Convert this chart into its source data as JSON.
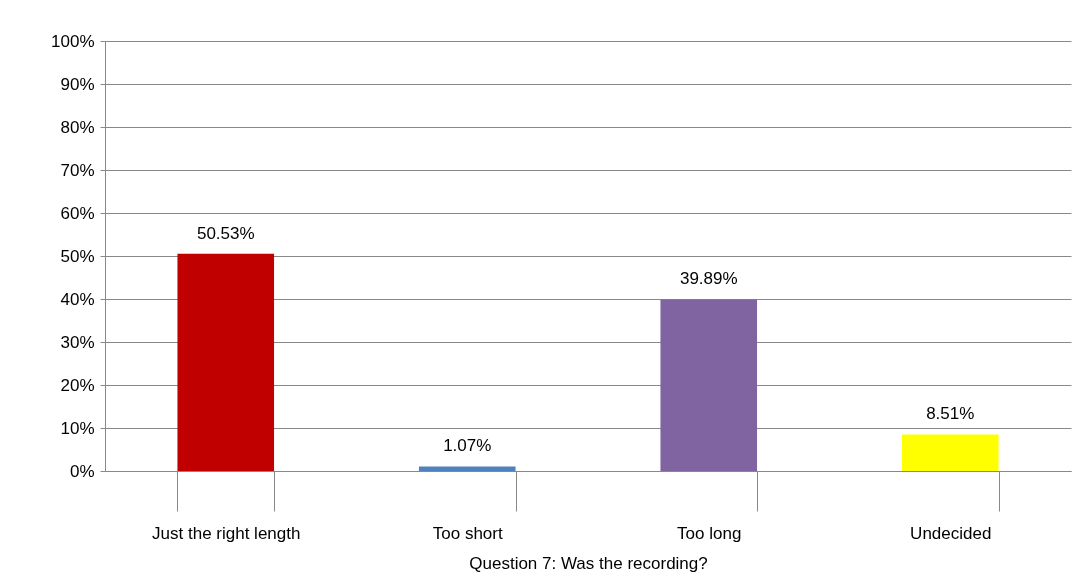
{
  "chart_data": {
    "type": "bar",
    "xlabel": "Question 7: Was the recording?",
    "categories": [
      "Just the right length",
      "Too short",
      "Too long",
      "Undecided"
    ],
    "values": [
      50.53,
      1.07,
      39.89,
      8.51
    ],
    "value_labels": [
      "50.53%",
      "1.07%",
      "39.89%",
      "8.51%"
    ],
    "colors": [
      "#c00000",
      "#4f81bd",
      "#8064a2",
      "#ffff00"
    ],
    "ylim": [
      0,
      100
    ],
    "yticks": [
      {
        "value": 0,
        "label": "0%"
      },
      {
        "value": 10,
        "label": "10%"
      },
      {
        "value": 20,
        "label": "20%"
      },
      {
        "value": 30,
        "label": "30%"
      },
      {
        "value": 40,
        "label": "40%"
      },
      {
        "value": 50,
        "label": "50%"
      },
      {
        "value": 60,
        "label": "60%"
      },
      {
        "value": 70,
        "label": "70%"
      },
      {
        "value": 80,
        "label": "80%"
      },
      {
        "value": 90,
        "label": "90%"
      },
      {
        "value": 100,
        "label": "100%"
      }
    ],
    "grid": "y",
    "legend": false
  }
}
